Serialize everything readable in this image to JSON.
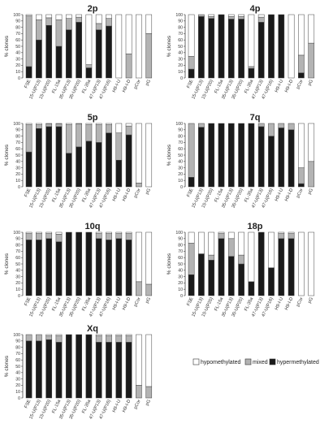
{
  "figure": {
    "ylabel": "% clones",
    "yticks": [
      0,
      10,
      20,
      30,
      40,
      50,
      60,
      70,
      80,
      90,
      100
    ],
    "legend": {
      "placement": "bottom-right",
      "items": [
        {
          "label": "hypomethylated",
          "color": "#ffffff"
        },
        {
          "label": "mixed",
          "color": "#b3b3b3"
        },
        {
          "label": "hypermethylated",
          "color": "#1a1a1a"
        }
      ]
    },
    "colors": {
      "hyper": "#1a1a1a",
      "mixed": "#b3b3b3",
      "hypo": "#ffffff",
      "stroke": "#444444"
    }
  },
  "chart_data": [
    {
      "type": "bar",
      "title": "2p",
      "stacked": true,
      "ylim": [
        0,
        100
      ],
      "categories": [
        "FSE",
        "15-U(P13)",
        "15-U(P20)",
        "FL-15a",
        "35-U(P13)",
        "35-U(P20)",
        "FL-35a",
        "47-U(P13)",
        "47-U(P16)",
        "H9-I-U",
        "H9-I-D",
        "pCor",
        "pG"
      ],
      "series": [
        {
          "name": "hypermethylated",
          "values": [
            18,
            60,
            83,
            50,
            76,
            88,
            16,
            76,
            82,
            0,
            0,
            0,
            0
          ]
        },
        {
          "name": "mixed",
          "values": [
            80,
            32,
            12,
            42,
            18,
            8,
            5,
            10,
            12,
            0,
            38,
            0,
            70
          ]
        },
        {
          "name": "hypomethylated",
          "values": [
            2,
            8,
            5,
            8,
            6,
            4,
            79,
            14,
            6,
            100,
            62,
            100,
            30
          ]
        }
      ]
    },
    {
      "type": "bar",
      "title": "4p",
      "stacked": true,
      "ylim": [
        0,
        100
      ],
      "categories": [
        "FSE",
        "15-U(P13)",
        "15-U(P20)",
        "FL-15a",
        "35-U(P13)",
        "35-U(P20)",
        "FL-35a",
        "47-U(P13)",
        "47-U(P16)",
        "H9-I-U",
        "H9-I-D",
        "pCor",
        "pG"
      ],
      "series": [
        {
          "name": "hypermethylated",
          "values": [
            14,
            97,
            94,
            100,
            93,
            93,
            15,
            88,
            100,
            100,
            0,
            8,
            0
          ]
        },
        {
          "name": "mixed",
          "values": [
            20,
            3,
            3,
            0,
            4,
            4,
            3,
            8,
            0,
            0,
            0,
            28,
            55
          ]
        },
        {
          "name": "hypomethylated",
          "values": [
            66,
            0,
            3,
            0,
            3,
            3,
            82,
            4,
            0,
            0,
            100,
            64,
            45
          ]
        }
      ]
    },
    {
      "type": "bar",
      "title": "5p",
      "stacked": true,
      "ylim": [
        0,
        100
      ],
      "categories": [
        "FSE",
        "15-U(P13)",
        "15-U(P20)",
        "FL-15a",
        "35-U(P13)",
        "35-U(P20)",
        "FL-35a",
        "47-U(P13)",
        "47-U(P16)",
        "H9-I-U",
        "H9-I-D",
        "pCor",
        "pG"
      ],
      "series": [
        {
          "name": "hypermethylated",
          "values": [
            55,
            92,
            95,
            95,
            53,
            63,
            72,
            70,
            85,
            42,
            82,
            0,
            0
          ]
        },
        {
          "name": "mixed",
          "values": [
            43,
            6,
            4,
            4,
            45,
            36,
            26,
            28,
            13,
            43,
            14,
            6,
            0
          ]
        },
        {
          "name": "hypomethylated",
          "values": [
            2,
            2,
            1,
            1,
            2,
            1,
            2,
            2,
            2,
            15,
            4,
            94,
            100
          ]
        }
      ]
    },
    {
      "type": "bar",
      "title": "7q",
      "stacked": true,
      "ylim": [
        0,
        100
      ],
      "categories": [
        "FSE",
        "15-U(P13)",
        "15-U(P20)",
        "FL-15a",
        "35-U(P13)",
        "35-U(P20)",
        "FL-35a",
        "47-U(P13)",
        "47-U(P16)",
        "H9-I-U",
        "H9-I-D",
        "pCor",
        "pG"
      ],
      "series": [
        {
          "name": "hypermethylated",
          "values": [
            15,
            94,
            100,
            100,
            100,
            100,
            100,
            95,
            80,
            93,
            90,
            5,
            0
          ]
        },
        {
          "name": "mixed",
          "values": [
            85,
            6,
            0,
            0,
            0,
            0,
            0,
            5,
            20,
            7,
            10,
            25,
            40
          ]
        },
        {
          "name": "hypomethylated",
          "values": [
            0,
            0,
            0,
            0,
            0,
            0,
            0,
            0,
            0,
            0,
            0,
            70,
            60
          ]
        }
      ]
    },
    {
      "type": "bar",
      "title": "10q",
      "stacked": true,
      "ylim": [
        0,
        100
      ],
      "categories": [
        "FSE",
        "15-U(P13)",
        "15-U(P20)",
        "FL-15a",
        "35-U(P13)",
        "35-U(P20)",
        "FL-35a",
        "47-U(P13)",
        "47-U(P16)",
        "H9-I-U",
        "H9-I-D",
        "pCor",
        "pG"
      ],
      "series": [
        {
          "name": "hypermethylated",
          "values": [
            88,
            88,
            90,
            85,
            100,
            100,
            100,
            90,
            88,
            90,
            88,
            0,
            0
          ]
        },
        {
          "name": "mixed",
          "values": [
            10,
            10,
            8,
            12,
            0,
            0,
            0,
            8,
            10,
            8,
            10,
            22,
            18
          ]
        },
        {
          "name": "hypomethylated",
          "values": [
            2,
            2,
            2,
            3,
            0,
            0,
            0,
            2,
            2,
            2,
            2,
            78,
            82
          ]
        }
      ]
    },
    {
      "type": "bar",
      "title": "18p",
      "stacked": true,
      "ylim": [
        0,
        100
      ],
      "categories": [
        "FSE",
        "15-U(P13)",
        "15-U(P20)",
        "FL-15a",
        "35-U(P13)",
        "35-U(P20)",
        "FL-35a",
        "47-U(P13)",
        "47-U(P16)",
        "H9-I-U",
        "H9-I-D",
        "pCor",
        "pG"
      ],
      "series": [
        {
          "name": "hypermethylated",
          "values": [
            33,
            66,
            56,
            90,
            62,
            50,
            22,
            100,
            44,
            90,
            90,
            0,
            0
          ]
        },
        {
          "name": "mixed",
          "values": [
            50,
            0,
            8,
            8,
            28,
            14,
            0,
            0,
            0,
            8,
            8,
            0,
            0
          ]
        },
        {
          "name": "hypomethylated",
          "values": [
            17,
            34,
            36,
            2,
            10,
            36,
            78,
            0,
            56,
            2,
            2,
            100,
            100
          ]
        }
      ]
    },
    {
      "type": "bar",
      "title": "Xq",
      "stacked": true,
      "ylim": [
        0,
        100
      ],
      "categories": [
        "FSE",
        "15-U(P13)",
        "15-U(P20)",
        "FL-15a",
        "35-U(P13)",
        "35-U(P20)",
        "FL-35a",
        "47-U(P13)",
        "47-U(P16)",
        "H9-I-U",
        "H9-I-D",
        "pCor",
        "pG"
      ],
      "series": [
        {
          "name": "hypermethylated",
          "values": [
            90,
            90,
            92,
            88,
            100,
            100,
            100,
            88,
            88,
            88,
            88,
            0,
            0
          ]
        },
        {
          "name": "mixed",
          "values": [
            10,
            10,
            6,
            10,
            0,
            0,
            0,
            10,
            10,
            10,
            10,
            20,
            18
          ]
        },
        {
          "name": "hypomethylated",
          "values": [
            0,
            0,
            2,
            2,
            0,
            0,
            0,
            2,
            2,
            2,
            2,
            80,
            82
          ]
        }
      ]
    }
  ]
}
